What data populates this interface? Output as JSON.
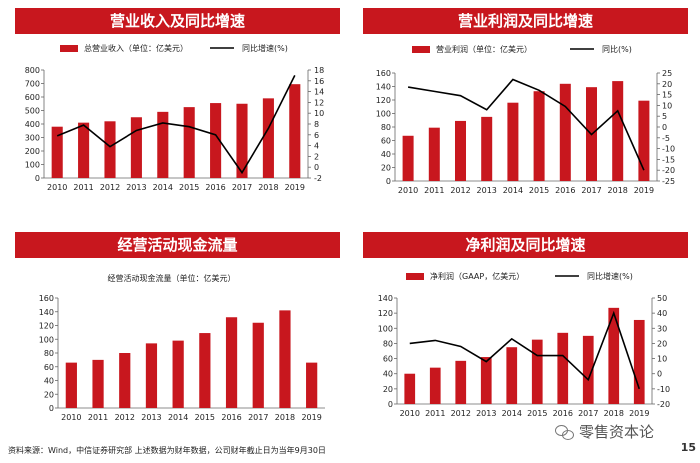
{
  "charts": [
    {
      "banner": "营业收入及同比增速",
      "type": "bar+line",
      "legend": {
        "bar": "总营业收入（单位：亿美元）",
        "line": "同比增速(%)"
      },
      "categories": [
        "2010",
        "2011",
        "2012",
        "2013",
        "2014",
        "2015",
        "2016",
        "2017",
        "2018",
        "2019"
      ],
      "bar_values": [
        380,
        410,
        420,
        450,
        490,
        525,
        555,
        550,
        590,
        695
      ],
      "line_values": [
        5.8,
        7.8,
        3.8,
        6.8,
        8.2,
        7.5,
        6.0,
        -1.0,
        7.2,
        17.0
      ],
      "left_axis": {
        "min": 0,
        "max": 800,
        "step": 100
      },
      "right_axis": {
        "min": -2,
        "max": 18,
        "step": 2
      }
    },
    {
      "banner": "营业利润及同比增速",
      "type": "bar+line",
      "legend": {
        "bar": "营业利润（单位：亿美元）",
        "line": "同比(%)"
      },
      "categories": [
        "2010",
        "2011",
        "2012",
        "2013",
        "2014",
        "2015",
        "2016",
        "2017",
        "2018",
        "2019"
      ],
      "bar_values": [
        67,
        79,
        89,
        95,
        116,
        133,
        144,
        139,
        148,
        119
      ],
      "line_values": [
        18.5,
        16.5,
        14.5,
        8.0,
        22.0,
        17.0,
        9.5,
        -3.5,
        7.5,
        -20.0
      ],
      "left_axis": {
        "min": 0,
        "max": 160,
        "step": 20
      },
      "right_axis": {
        "min": -25,
        "max": 25,
        "step": 5
      }
    },
    {
      "banner": "经营活动现金流量",
      "type": "bar",
      "legend": {
        "bar": "经营活动现金流量（单位：亿美元）"
      },
      "categories": [
        "2010",
        "2011",
        "2012",
        "2013",
        "2014",
        "2015",
        "2016",
        "2017",
        "2018",
        "2019"
      ],
      "bar_values": [
        66,
        70,
        80,
        94,
        98,
        109,
        132,
        124,
        142,
        66
      ],
      "left_axis": {
        "min": 0,
        "max": 160,
        "step": 20
      }
    },
    {
      "banner": "净利润及同比增速",
      "type": "bar+line",
      "legend": {
        "bar": "净利润（GAAP，亿美元）",
        "line": "同比增速(%)"
      },
      "categories": [
        "2010",
        "2011",
        "2012",
        "2013",
        "2014",
        "2015",
        "2016",
        "2017",
        "2018",
        "2019"
      ],
      "bar_values": [
        40,
        48,
        57,
        62,
        75,
        85,
        94,
        90,
        127,
        111
      ],
      "line_values": [
        20,
        22,
        18,
        8,
        23,
        12,
        12,
        -4,
        40,
        -10
      ],
      "left_axis": {
        "min": 0,
        "max": 140,
        "step": 20
      },
      "right_axis": {
        "min": -20,
        "max": 50,
        "step": 10
      }
    }
  ],
  "footer": "资料来源：Wind，中信证券研究部 上述数据为财年数据，公司财年截止日为当年9月30日",
  "watermark": "零售资本论",
  "page_number": "15",
  "colors": {
    "bar": "#c8171e",
    "line": "#000000",
    "banner": "#c8171e"
  }
}
